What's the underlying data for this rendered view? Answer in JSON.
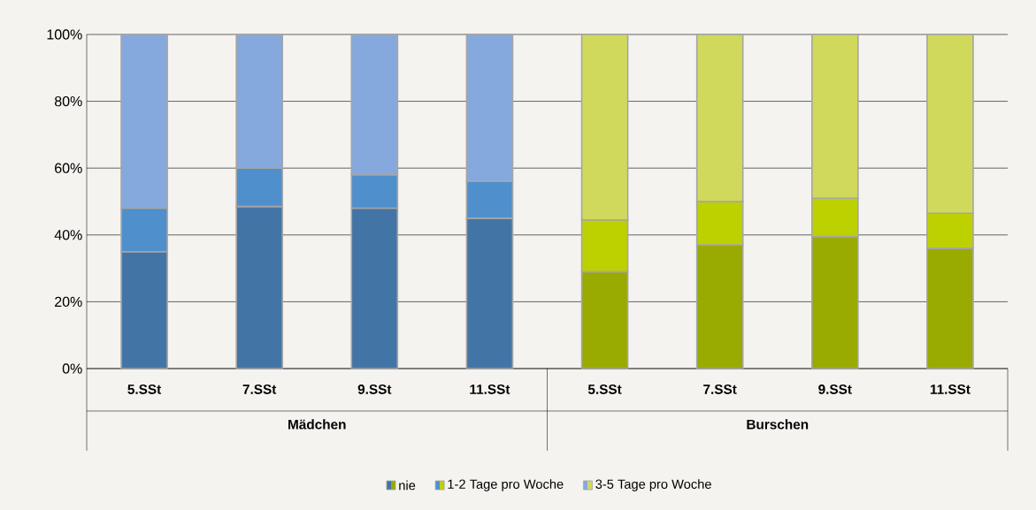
{
  "chart_data": {
    "type": "bar",
    "stacked": true,
    "categories": [
      "5.SSt",
      "7.SSt",
      "9.SSt",
      "11.SSt",
      "5.SSt",
      "7.SSt",
      "9.SSt",
      "11.SSt"
    ],
    "annotations": [
      "Mädchen",
      "Burschen"
    ],
    "series": [
      {
        "name": "nie",
        "colors": [
          "#4275a6",
          "#4275a6",
          "#4275a6",
          "#4275a6",
          "#99aa00",
          "#99aa00",
          "#99aa00",
          "#99aa00"
        ],
        "values": [
          35,
          48.5,
          48,
          45,
          29,
          37,
          39.5,
          36
        ]
      },
      {
        "name": "1-2 Tage pro Woche",
        "colors": [
          "#4f8fcc",
          "#4f8fcc",
          "#4f8fcc",
          "#4f8fcc",
          "#bdd000",
          "#bdd000",
          "#bdd000",
          "#bdd000"
        ],
        "values": [
          13,
          11.5,
          10,
          11,
          15.5,
          13,
          11.5,
          10.5
        ]
      },
      {
        "name": "3-5 Tage pro Woche",
        "colors": [
          "#85a9dc",
          "#85a9dc",
          "#85a9dc",
          "#85a9dc",
          "#d0d95c",
          "#d0d95c",
          "#d0d95c",
          "#d0d95c"
        ],
        "values": [
          52,
          40,
          42,
          44,
          55.5,
          50,
          49,
          53.5
        ]
      }
    ],
    "ylim": [
      0,
      100
    ],
    "yticks": [
      {
        "value": 0,
        "label": "0%"
      },
      {
        "value": 20,
        "label": "20%"
      },
      {
        "value": 40,
        "label": "40%"
      },
      {
        "value": 60,
        "label": "60%"
      },
      {
        "value": 80,
        "label": "80%"
      },
      {
        "value": 100,
        "label": "100%"
      }
    ],
    "grid": "y",
    "legend": "bottom"
  }
}
